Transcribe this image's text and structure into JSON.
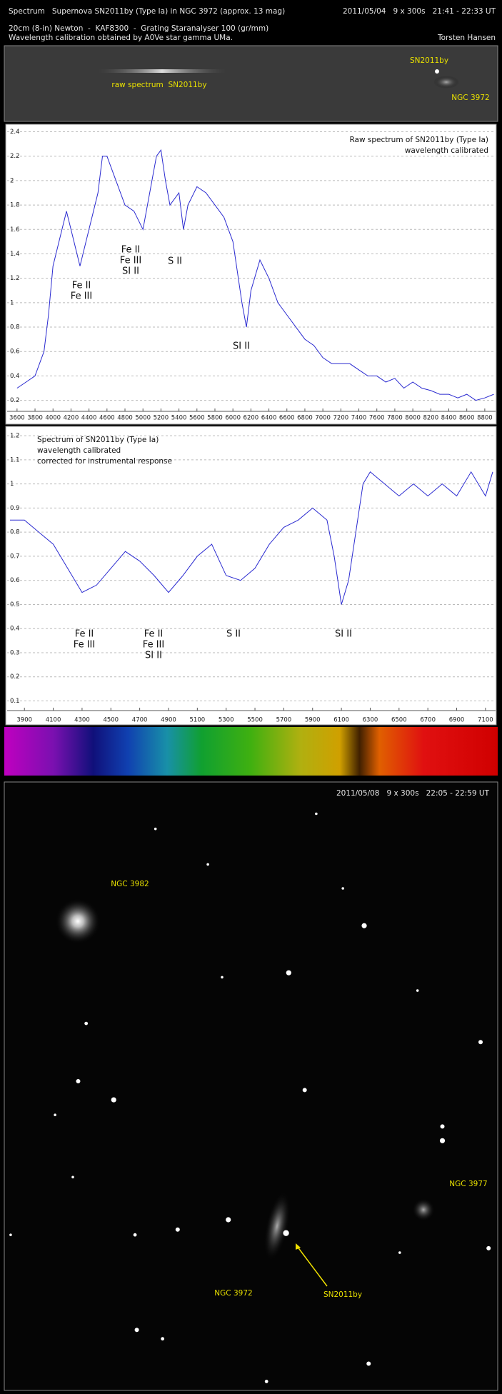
{
  "header": {
    "title": "Spectrum   Supernova SN2011by (Type Ia) in NGC 3972 (approx. 13 mag)",
    "date": "2011/05/04   9 x 300s   21:41 - 22:33 UT",
    "equipment": "20cm (8-in) Newton  -  KAF8300  -  Grating Staranalyser 100 (gr/mm)",
    "calibration": "Wavelength calibration obtained by A0Ve star gamma UMa.",
    "author": "Torsten Hansen"
  },
  "raw_spectrum": {
    "label": "raw spectrum  SN2011by",
    "supernova": "SN2011by",
    "galaxy": "NGC 3972"
  },
  "chart_data": [
    {
      "type": "line",
      "title": [
        "Raw spectrum of SN2011by (Type Ia)",
        "wavelength calibrated"
      ],
      "x": [
        3600,
        3700,
        3800,
        3900,
        3950,
        4000,
        4100,
        4150,
        4200,
        4300,
        4400,
        4500,
        4550,
        4600,
        4700,
        4800,
        4900,
        5000,
        5100,
        5150,
        5200,
        5250,
        5300,
        5400,
        5450,
        5500,
        5600,
        5700,
        5800,
        5900,
        6000,
        6100,
        6150,
        6200,
        6300,
        6400,
        6500,
        6600,
        6700,
        6800,
        6900,
        7000,
        7100,
        7200,
        7300,
        7400,
        7500,
        7600,
        7700,
        7800,
        7900,
        8000,
        8100,
        8200,
        8300,
        8400,
        8500,
        8600,
        8700,
        8800,
        8900
      ],
      "series": [
        {
          "color": "#2a2ad0",
          "values": [
            0.3,
            0.35,
            0.4,
            0.6,
            0.9,
            1.3,
            1.6,
            1.75,
            1.6,
            1.3,
            1.6,
            1.9,
            2.2,
            2.2,
            2.0,
            1.8,
            1.75,
            1.6,
            2.0,
            2.2,
            2.25,
            2.0,
            1.8,
            1.9,
            1.6,
            1.8,
            1.95,
            1.9,
            1.8,
            1.7,
            1.5,
            1.0,
            0.8,
            1.1,
            1.35,
            1.2,
            1.0,
            0.9,
            0.8,
            0.7,
            0.65,
            0.55,
            0.5,
            0.5,
            0.5,
            0.45,
            0.4,
            0.4,
            0.35,
            0.38,
            0.3,
            0.35,
            0.3,
            0.28,
            0.25,
            0.25,
            0.22,
            0.25,
            0.2,
            0.22,
            0.25
          ]
        }
      ],
      "xlim": [
        3490,
        8920
      ],
      "xticks": [
        3600,
        3800,
        4000,
        4200,
        4400,
        4600,
        4800,
        5000,
        5200,
        5400,
        5600,
        5800,
        6000,
        6200,
        6400,
        6600,
        6800,
        7000,
        7200,
        7400,
        7600,
        7800,
        8000,
        8200,
        8400,
        8600,
        8800
      ],
      "ylim": [
        0.11,
        2.45
      ],
      "yticks": [
        0.2,
        0.4,
        0.6,
        0.8,
        1,
        1.2,
        1.4,
        1.6,
        1.8,
        2,
        2.2,
        2.4
      ],
      "grid": true,
      "annotations": [
        [
          "Fe II",
          "Fe III"
        ],
        [
          "Fe II",
          "Fe III",
          "SI II"
        ],
        [
          "S II"
        ],
        [
          "SI II"
        ]
      ]
    },
    {
      "type": "line",
      "title": [
        "Spectrum of SN2011by (Type Ia)",
        "wavelength calibrated",
        "corrected for instrumental response"
      ],
      "x": [
        3800,
        3900,
        4000,
        4100,
        4200,
        4300,
        4400,
        4500,
        4600,
        4700,
        4800,
        4900,
        5000,
        5100,
        5200,
        5300,
        5400,
        5500,
        5600,
        5700,
        5800,
        5900,
        6000,
        6050,
        6100,
        6150,
        6200,
        6250,
        6300,
        6400,
        6500,
        6600,
        6700,
        6800,
        6900,
        7000,
        7100,
        7150
      ],
      "series": [
        {
          "color": "#2a2ad0",
          "values": [
            0.85,
            0.85,
            0.8,
            0.75,
            0.65,
            0.55,
            0.58,
            0.65,
            0.72,
            0.68,
            0.62,
            0.55,
            0.62,
            0.7,
            0.75,
            0.62,
            0.6,
            0.65,
            0.75,
            0.82,
            0.85,
            0.9,
            0.85,
            0.7,
            0.5,
            0.6,
            0.8,
            1.0,
            1.05,
            1.0,
            0.95,
            1.0,
            0.95,
            1.0,
            0.95,
            1.05,
            0.95,
            1.05
          ]
        }
      ],
      "xlim": [
        3780,
        7170
      ],
      "xticks": [
        3900,
        4100,
        4300,
        4500,
        4700,
        4900,
        5100,
        5300,
        5500,
        5700,
        5900,
        6100,
        6300,
        6500,
        6700,
        6900,
        7100
      ],
      "ylim": [
        0.06,
        1.23
      ],
      "yticks": [
        0.1,
        0.2,
        0.3,
        0.4,
        0.5,
        0.6,
        0.7,
        0.8,
        0.9,
        1,
        1.1,
        1.2
      ],
      "grid": true,
      "annotations": [
        [
          "Fe II",
          "Fe III"
        ],
        [
          "Fe II",
          "Fe III",
          "SI II"
        ],
        [
          "S II"
        ],
        [
          "SI II"
        ]
      ]
    }
  ],
  "sky_image": {
    "caption": "2011/05/08   9 x 300s   22:05 - 22:59 UT",
    "labels": [
      "NGC 3982",
      "NGC 3977",
      "NGC 3972",
      "SN2011by"
    ]
  }
}
